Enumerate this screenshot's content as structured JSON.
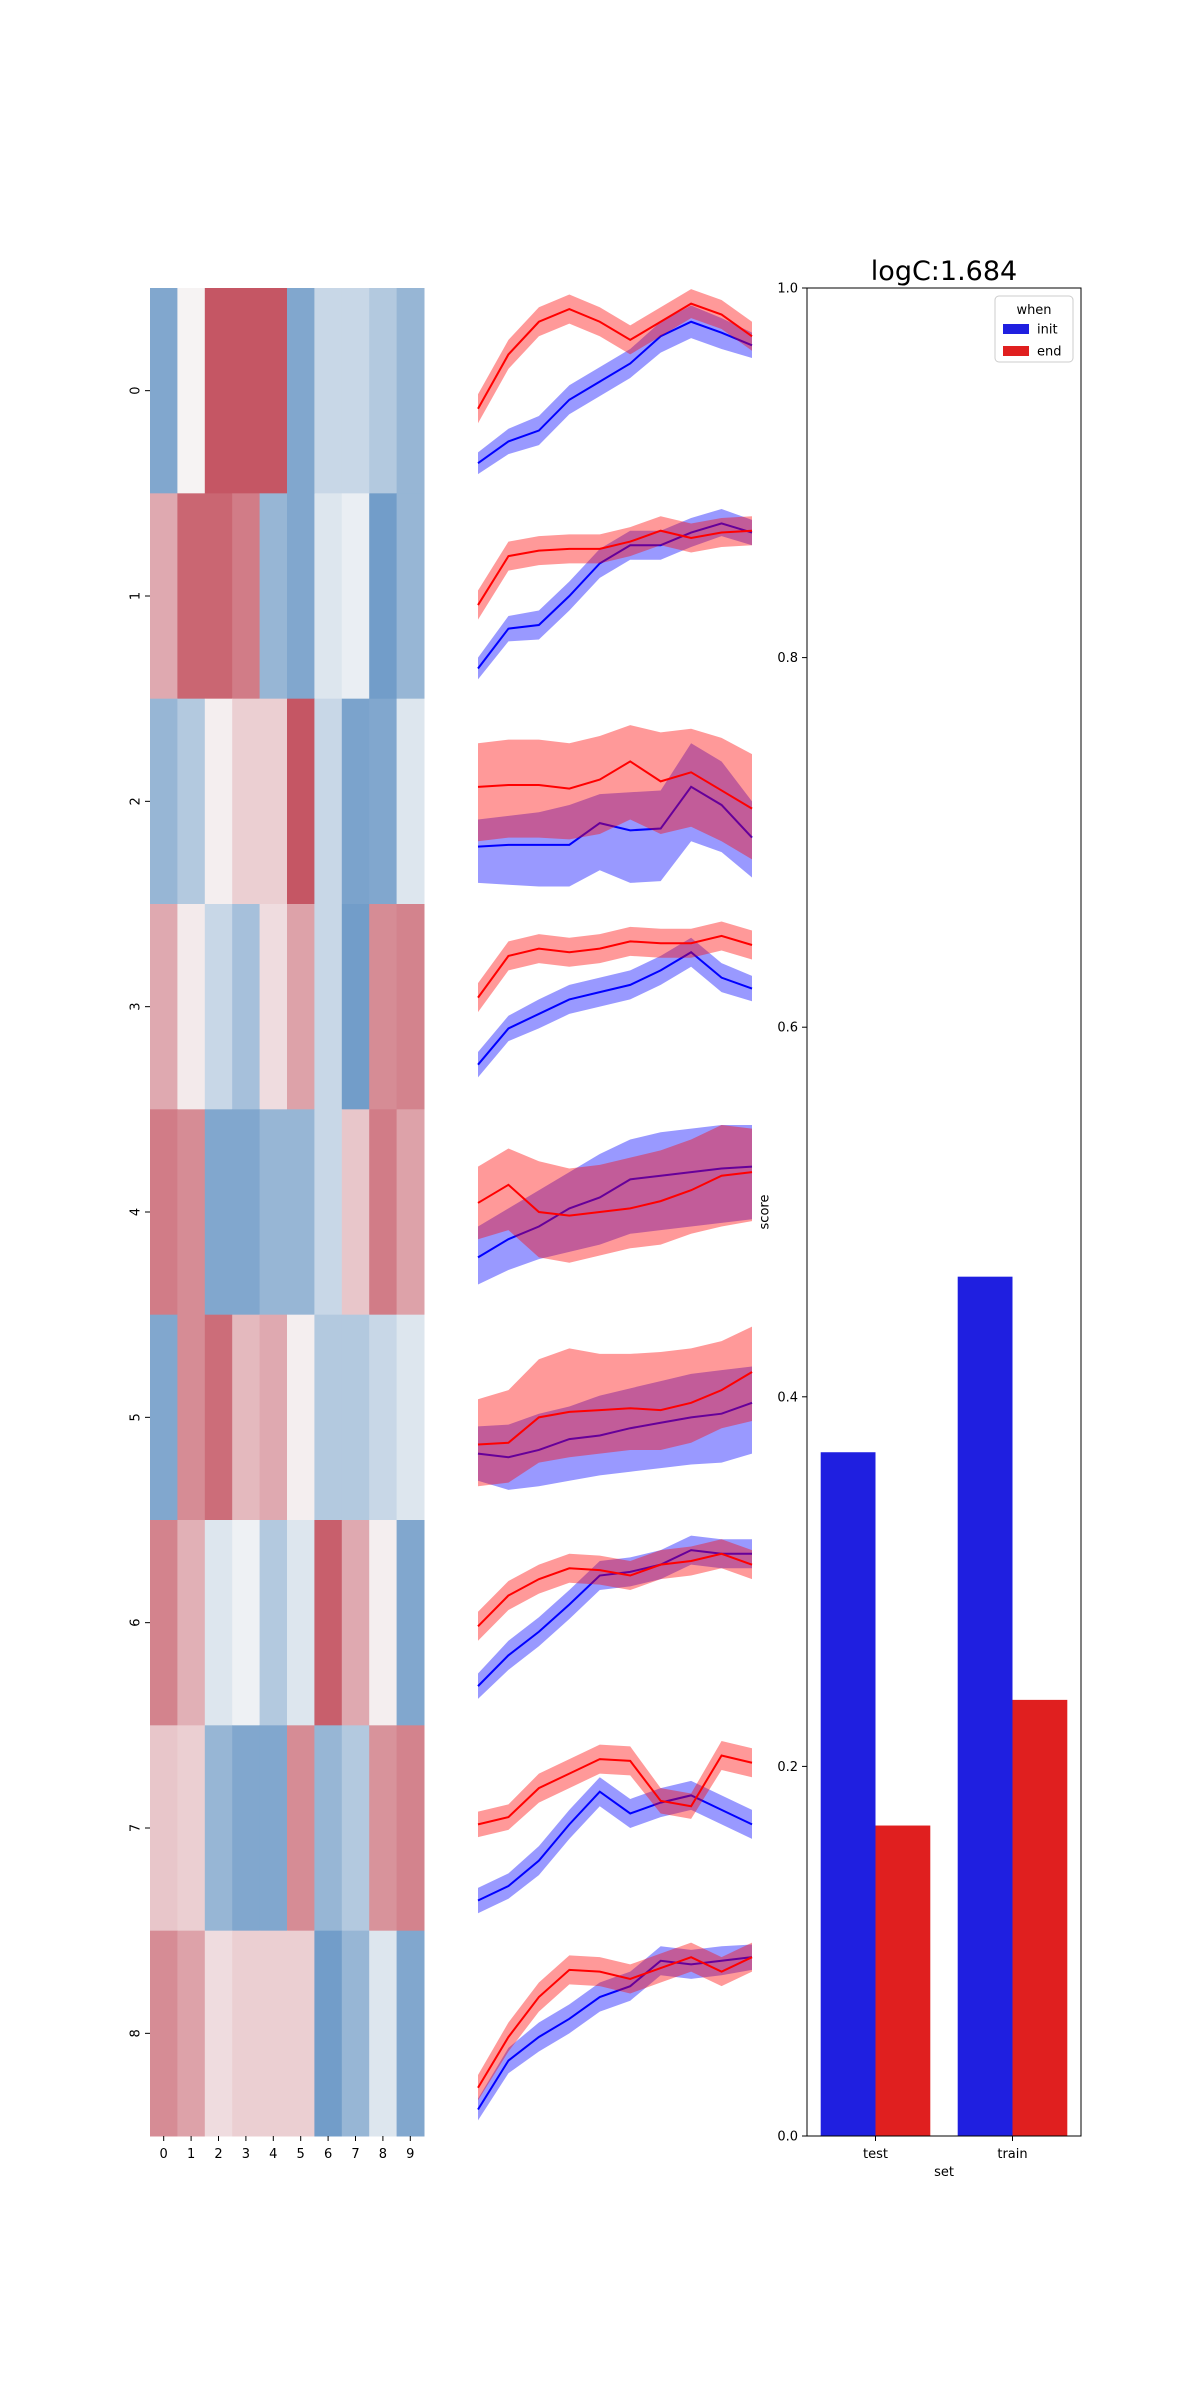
{
  "chart_data": [
    {
      "type": "heatmap",
      "rows": [
        "0",
        "1",
        "2",
        "3",
        "4",
        "5",
        "6",
        "7",
        "8"
      ],
      "columns": [
        "0",
        "1",
        "2",
        "3",
        "4",
        "5",
        "6",
        "7",
        "8",
        "9"
      ],
      "values": [
        [
          -0.55,
          0.02,
          0.72,
          0.72,
          0.72,
          -0.55,
          -0.22,
          -0.22,
          -0.32,
          -0.45
        ],
        [
          0.35,
          0.65,
          0.65,
          0.55,
          -0.45,
          -0.55,
          -0.12,
          -0.06,
          -0.62,
          -0.45
        ],
        [
          -0.45,
          -0.32,
          0.04,
          0.18,
          0.18,
          0.72,
          -0.22,
          -0.58,
          -0.55,
          -0.12
        ],
        [
          0.35,
          0.06,
          -0.22,
          -0.38,
          0.12,
          0.38,
          -0.22,
          -0.62,
          0.48,
          0.52
        ],
        [
          0.55,
          0.48,
          -0.55,
          -0.55,
          -0.45,
          -0.45,
          -0.22,
          0.22,
          0.55,
          0.38
        ],
        [
          -0.55,
          0.48,
          0.62,
          0.28,
          0.35,
          0.04,
          -0.32,
          -0.32,
          -0.22,
          -0.12
        ],
        [
          0.52,
          0.32,
          -0.12,
          -0.04,
          -0.32,
          -0.12,
          0.68,
          0.35,
          0.04,
          -0.55
        ],
        [
          0.22,
          0.18,
          -0.45,
          -0.55,
          -0.55,
          0.48,
          -0.45,
          -0.32,
          0.45,
          0.52
        ],
        [
          0.48,
          0.38,
          0.12,
          0.18,
          0.18,
          0.18,
          -0.62,
          -0.45,
          -0.12,
          -0.55
        ]
      ],
      "colormap": {
        "negative": "#2166ac",
        "zero": "#f7f7f7",
        "positive": "#b2182b"
      },
      "vlim": [
        -1,
        1
      ]
    },
    {
      "type": "line",
      "note_series_colors": {
        "init": "#0000ff",
        "end": "#ff0000"
      },
      "x": [
        0,
        1,
        2,
        3,
        4,
        5,
        6,
        7,
        8,
        9
      ],
      "panels": [
        {
          "init": {
            "mean": [
              0.1,
              0.22,
              0.28,
              0.45,
              0.55,
              0.65,
              0.8,
              0.88,
              0.82,
              0.75
            ],
            "lo": [
              0.04,
              0.15,
              0.2,
              0.37,
              0.47,
              0.57,
              0.71,
              0.79,
              0.73,
              0.68
            ],
            "hi": [
              0.16,
              0.29,
              0.36,
              0.53,
              0.63,
              0.73,
              0.88,
              0.97,
              0.9,
              0.82
            ]
          },
          "end": {
            "mean": [
              0.4,
              0.7,
              0.88,
              0.95,
              0.88,
              0.78,
              0.88,
              0.98,
              0.92,
              0.8
            ],
            "lo": [
              0.32,
              0.62,
              0.8,
              0.87,
              0.8,
              0.7,
              0.8,
              0.9,
              0.84,
              0.72
            ],
            "hi": [
              0.48,
              0.78,
              0.96,
              1.03,
              0.96,
              0.86,
              0.96,
              1.06,
              1.0,
              0.88
            ]
          }
        },
        {
          "init": {
            "mean": [
              0.1,
              0.32,
              0.34,
              0.5,
              0.68,
              0.78,
              0.78,
              0.85,
              0.9,
              0.85
            ],
            "lo": [
              0.04,
              0.25,
              0.26,
              0.42,
              0.6,
              0.7,
              0.7,
              0.77,
              0.83,
              0.78
            ],
            "hi": [
              0.16,
              0.39,
              0.42,
              0.58,
              0.76,
              0.86,
              0.86,
              0.93,
              0.98,
              0.92
            ]
          },
          "end": {
            "mean": [
              0.45,
              0.72,
              0.75,
              0.76,
              0.76,
              0.8,
              0.86,
              0.82,
              0.85,
              0.86
            ],
            "lo": [
              0.37,
              0.64,
              0.67,
              0.68,
              0.68,
              0.72,
              0.78,
              0.74,
              0.77,
              0.78
            ],
            "hi": [
              0.53,
              0.8,
              0.83,
              0.84,
              0.84,
              0.88,
              0.94,
              0.9,
              0.93,
              0.94
            ]
          }
        },
        {
          "init": {
            "mean": [
              0.25,
              0.26,
              0.26,
              0.26,
              0.38,
              0.34,
              0.35,
              0.58,
              0.48,
              0.3
            ],
            "lo": [
              0.05,
              0.04,
              0.03,
              0.03,
              0.12,
              0.05,
              0.06,
              0.28,
              0.22,
              0.08
            ],
            "hi": [
              0.4,
              0.42,
              0.44,
              0.48,
              0.54,
              0.55,
              0.56,
              0.82,
              0.72,
              0.5
            ]
          },
          "end": {
            "mean": [
              0.58,
              0.59,
              0.59,
              0.57,
              0.62,
              0.72,
              0.61,
              0.66,
              0.56,
              0.46
            ],
            "lo": [
              0.28,
              0.3,
              0.3,
              0.29,
              0.32,
              0.4,
              0.32,
              0.36,
              0.28,
              0.18
            ],
            "hi": [
              0.82,
              0.84,
              0.84,
              0.82,
              0.86,
              0.92,
              0.88,
              0.9,
              0.85,
              0.76
            ]
          }
        },
        {
          "init": {
            "mean": [
              0.18,
              0.38,
              0.46,
              0.54,
              0.58,
              0.62,
              0.7,
              0.8,
              0.66,
              0.6
            ],
            "lo": [
              0.11,
              0.31,
              0.38,
              0.46,
              0.5,
              0.54,
              0.62,
              0.72,
              0.58,
              0.53
            ],
            "hi": [
              0.25,
              0.45,
              0.54,
              0.62,
              0.66,
              0.7,
              0.78,
              0.88,
              0.74,
              0.67
            ]
          },
          "end": {
            "mean": [
              0.55,
              0.78,
              0.82,
              0.8,
              0.82,
              0.86,
              0.85,
              0.85,
              0.89,
              0.84
            ],
            "lo": [
              0.47,
              0.7,
              0.74,
              0.72,
              0.74,
              0.78,
              0.77,
              0.77,
              0.81,
              0.76
            ],
            "hi": [
              0.63,
              0.86,
              0.9,
              0.88,
              0.9,
              0.94,
              0.93,
              0.93,
              0.97,
              0.92
            ]
          }
        },
        {
          "init": {
            "mean": [
              0.25,
              0.35,
              0.42,
              0.52,
              0.58,
              0.68,
              0.7,
              0.72,
              0.74,
              0.75
            ],
            "lo": [
              0.1,
              0.18,
              0.24,
              0.28,
              0.32,
              0.38,
              0.4,
              0.42,
              0.44,
              0.46
            ],
            "hi": [
              0.42,
              0.52,
              0.62,
              0.72,
              0.82,
              0.9,
              0.94,
              0.96,
              0.98,
              0.98
            ]
          },
          "end": {
            "mean": [
              0.55,
              0.65,
              0.5,
              0.48,
              0.5,
              0.52,
              0.56,
              0.62,
              0.7,
              0.72
            ],
            "lo": [
              0.35,
              0.4,
              0.25,
              0.22,
              0.26,
              0.3,
              0.32,
              0.38,
              0.42,
              0.45
            ],
            "hi": [
              0.75,
              0.85,
              0.78,
              0.74,
              0.76,
              0.8,
              0.84,
              0.9,
              0.98,
              0.96
            ]
          }
        },
        {
          "init": {
            "mean": [
              0.3,
              0.28,
              0.32,
              0.38,
              0.4,
              0.44,
              0.47,
              0.5,
              0.52,
              0.58
            ],
            "lo": [
              0.15,
              0.1,
              0.12,
              0.15,
              0.18,
              0.2,
              0.22,
              0.24,
              0.25,
              0.3
            ],
            "hi": [
              0.45,
              0.46,
              0.52,
              0.56,
              0.62,
              0.66,
              0.7,
              0.74,
              0.76,
              0.78
            ]
          },
          "end": {
            "mean": [
              0.35,
              0.36,
              0.5,
              0.53,
              0.54,
              0.55,
              0.54,
              0.58,
              0.65,
              0.75
            ],
            "lo": [
              0.12,
              0.14,
              0.25,
              0.28,
              0.3,
              0.32,
              0.32,
              0.36,
              0.44,
              0.48
            ],
            "hi": [
              0.6,
              0.65,
              0.82,
              0.88,
              0.85,
              0.85,
              0.86,
              0.88,
              0.92,
              1.0
            ]
          }
        },
        {
          "init": {
            "mean": [
              0.15,
              0.32,
              0.45,
              0.6,
              0.76,
              0.78,
              0.82,
              0.9,
              0.88,
              0.88
            ],
            "lo": [
              0.08,
              0.24,
              0.37,
              0.52,
              0.68,
              0.7,
              0.74,
              0.82,
              0.8,
              0.8
            ],
            "hi": [
              0.22,
              0.4,
              0.53,
              0.68,
              0.84,
              0.86,
              0.9,
              0.98,
              0.96,
              0.96
            ]
          },
          "end": {
            "mean": [
              0.48,
              0.65,
              0.74,
              0.8,
              0.79,
              0.76,
              0.82,
              0.84,
              0.88,
              0.82
            ],
            "lo": [
              0.4,
              0.57,
              0.66,
              0.72,
              0.71,
              0.68,
              0.74,
              0.76,
              0.8,
              0.74
            ],
            "hi": [
              0.56,
              0.73,
              0.82,
              0.88,
              0.87,
              0.84,
              0.9,
              0.92,
              0.96,
              0.9
            ]
          }
        },
        {
          "init": {
            "mean": [
              0.1,
              0.18,
              0.32,
              0.52,
              0.7,
              0.58,
              0.64,
              0.68,
              0.6,
              0.52
            ],
            "lo": [
              0.03,
              0.11,
              0.24,
              0.44,
              0.62,
              0.5,
              0.56,
              0.6,
              0.52,
              0.44
            ],
            "hi": [
              0.17,
              0.25,
              0.4,
              0.6,
              0.78,
              0.66,
              0.72,
              0.76,
              0.68,
              0.6
            ]
          },
          "end": {
            "mean": [
              0.52,
              0.56,
              0.72,
              0.8,
              0.88,
              0.87,
              0.65,
              0.62,
              0.9,
              0.86
            ],
            "lo": [
              0.45,
              0.49,
              0.64,
              0.72,
              0.8,
              0.79,
              0.58,
              0.55,
              0.82,
              0.78
            ],
            "hi": [
              0.59,
              0.63,
              0.8,
              0.88,
              0.96,
              0.95,
              0.72,
              0.69,
              0.98,
              0.94
            ]
          }
        },
        {
          "init": {
            "mean": [
              0.08,
              0.35,
              0.48,
              0.58,
              0.7,
              0.76,
              0.9,
              0.88,
              0.9,
              0.92
            ],
            "lo": [
              0.02,
              0.28,
              0.4,
              0.5,
              0.62,
              0.68,
              0.82,
              0.8,
              0.82,
              0.85
            ],
            "hi": [
              0.14,
              0.42,
              0.56,
              0.66,
              0.78,
              0.84,
              0.98,
              0.96,
              0.98,
              0.99
            ]
          },
          "end": {
            "mean": [
              0.2,
              0.48,
              0.7,
              0.85,
              0.84,
              0.8,
              0.86,
              0.92,
              0.84,
              0.92
            ],
            "lo": [
              0.13,
              0.4,
              0.62,
              0.77,
              0.76,
              0.72,
              0.78,
              0.84,
              0.76,
              0.84
            ],
            "hi": [
              0.27,
              0.56,
              0.78,
              0.93,
              0.92,
              0.88,
              0.94,
              1.0,
              0.92,
              1.0
            ]
          }
        }
      ]
    },
    {
      "type": "bar",
      "title": "logC:1.684",
      "categories": [
        "test",
        "train"
      ],
      "series": [
        {
          "name": "init",
          "values": [
            0.37,
            0.465
          ],
          "color": "#1f1fe0"
        },
        {
          "name": "end",
          "values": [
            0.168,
            0.236
          ],
          "color": "#e01f1f"
        }
      ],
      "xlabel": "set",
      "ylabel": "score",
      "ylim": [
        0,
        1
      ],
      "yticks": [
        "0.0",
        "0.2",
        "0.4",
        "0.6",
        "0.8",
        "1.0"
      ],
      "legend": {
        "title": "when",
        "placement": "top-right"
      }
    }
  ]
}
